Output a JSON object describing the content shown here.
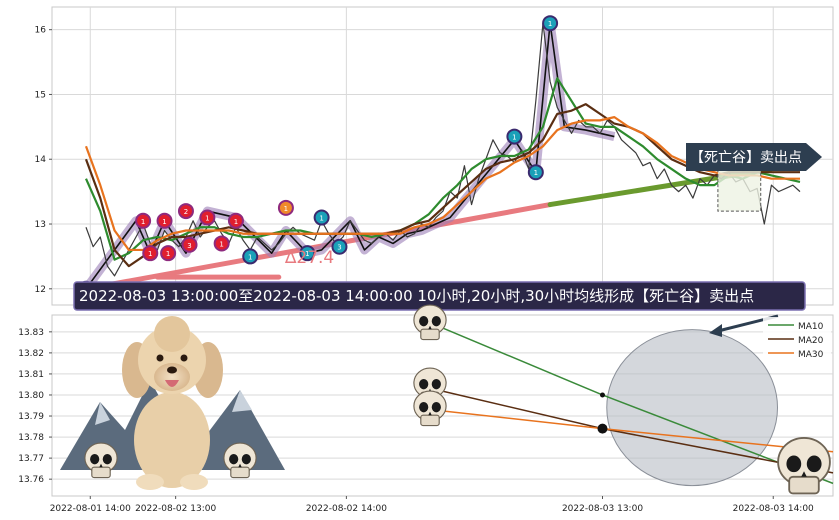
{
  "chart_data": [
    {
      "type": "line",
      "panel": "price",
      "y_ticks": [
        12,
        13,
        14,
        15,
        16
      ],
      "ylim": [
        11.75,
        16.35
      ],
      "x_index_range": [
        0,
        100
      ],
      "colors": {
        "price": "#3b3b3b",
        "ma10": "#2e8b2e",
        "ma20": "#5a2e12",
        "ma30": "#e8731e",
        "trend_red": "#e87a7f",
        "trend_green": "#6a9a2e"
      },
      "series": [
        {
          "key": "price",
          "x": [
            0,
            1,
            2,
            3,
            4,
            5,
            6,
            7,
            8,
            9,
            10,
            11,
            12,
            13,
            14,
            15,
            16,
            17,
            18,
            19,
            20,
            21,
            22,
            23,
            24,
            25,
            26,
            27,
            28,
            29,
            30,
            31,
            32,
            33,
            34,
            35,
            36,
            37,
            38,
            39,
            40,
            41,
            42,
            43,
            44,
            45,
            46,
            47,
            48,
            49,
            50,
            51,
            52,
            53,
            54,
            55,
            56,
            57,
            58,
            59,
            60,
            61,
            62,
            63,
            64,
            65,
            66,
            67,
            68,
            69,
            70,
            71,
            72,
            73,
            74,
            75,
            76,
            77,
            78,
            79,
            80,
            81,
            82,
            83,
            84,
            85,
            86,
            87,
            88,
            89,
            90,
            91,
            92,
            93,
            94,
            95,
            96,
            97,
            98,
            99,
            100
          ],
          "y": [
            12.95,
            12.65,
            12.8,
            12.35,
            12.2,
            12.4,
            12.6,
            12.8,
            13.0,
            12.7,
            12.6,
            12.9,
            12.75,
            12.65,
            12.8,
            13.05,
            12.8,
            12.95,
            13.05,
            12.85,
            12.7,
            12.95,
            12.75,
            12.6,
            12.8,
            12.7,
            12.6,
            12.7,
            12.85,
            12.95,
            12.85,
            12.8,
            12.75,
            13.05,
            12.85,
            12.7,
            12.8,
            13.05,
            12.9,
            12.75,
            12.7,
            12.8,
            12.85,
            12.75,
            12.9,
            12.8,
            12.85,
            13.0,
            12.95,
            13.1,
            13.2,
            13.5,
            13.4,
            13.9,
            13.3,
            13.7,
            14.0,
            14.3,
            14.1,
            14.05,
            13.95,
            14.15,
            13.85,
            14.9,
            16.1,
            15.2,
            14.8,
            14.6,
            14.4,
            14.6,
            14.5,
            14.5,
            14.4,
            14.6,
            14.5,
            14.3,
            14.2,
            14.1,
            13.9,
            13.95,
            13.7,
            13.85,
            13.6,
            13.5,
            13.6,
            13.4,
            13.7,
            13.6,
            13.75,
            13.7,
            13.8,
            13.65,
            13.7,
            13.5,
            13.55,
            13.0,
            13.6,
            13.5,
            13.55,
            13.6,
            13.5
          ]
        },
        {
          "key": "ma10",
          "x": [
            0,
            2,
            4,
            6,
            8,
            10,
            12,
            14,
            16,
            18,
            20,
            22,
            24,
            26,
            28,
            30,
            32,
            34,
            36,
            38,
            40,
            42,
            44,
            46,
            48,
            50,
            52,
            54,
            56,
            58,
            60,
            62,
            64,
            66,
            68,
            70,
            72,
            74,
            76,
            78,
            80,
            82,
            84,
            86,
            88,
            90,
            92,
            94,
            96,
            98,
            100
          ],
          "y": [
            13.7,
            13.2,
            12.45,
            12.55,
            12.75,
            12.8,
            12.75,
            12.85,
            12.95,
            12.95,
            12.85,
            12.8,
            12.8,
            12.85,
            12.9,
            12.9,
            12.85,
            12.85,
            12.85,
            12.85,
            12.8,
            12.85,
            12.9,
            13.0,
            13.15,
            13.4,
            13.6,
            13.85,
            14.0,
            14.05,
            14.05,
            14.15,
            14.5,
            15.25,
            14.9,
            14.55,
            14.5,
            14.5,
            14.35,
            14.2,
            14.0,
            13.85,
            13.7,
            13.6,
            13.6,
            13.75,
            13.7,
            13.8,
            13.75,
            13.7,
            13.65
          ]
        },
        {
          "key": "ma20",
          "x": [
            0,
            2,
            4,
            6,
            8,
            10,
            12,
            14,
            16,
            18,
            20,
            22,
            24,
            26,
            28,
            30,
            32,
            34,
            36,
            38,
            40,
            42,
            44,
            46,
            48,
            50,
            52,
            54,
            56,
            58,
            60,
            62,
            64,
            66,
            68,
            70,
            72,
            74,
            76,
            78,
            80,
            82,
            84,
            86,
            88,
            90,
            92,
            94,
            96,
            98,
            100
          ],
          "y": [
            14.0,
            13.4,
            12.6,
            12.35,
            12.5,
            12.7,
            12.8,
            12.8,
            12.85,
            12.9,
            12.95,
            12.9,
            12.85,
            12.85,
            12.85,
            12.85,
            12.85,
            12.85,
            12.85,
            12.85,
            12.85,
            12.85,
            12.9,
            13.0,
            13.05,
            13.25,
            13.45,
            13.65,
            13.85,
            13.95,
            14.0,
            14.1,
            14.3,
            14.7,
            14.75,
            14.85,
            14.7,
            14.55,
            14.5,
            14.4,
            14.2,
            14.0,
            13.9,
            13.8,
            13.75,
            13.8,
            13.8,
            13.8,
            13.8,
            13.8,
            13.8
          ]
        },
        {
          "key": "ma30",
          "x": [
            0,
            2,
            4,
            6,
            8,
            10,
            12,
            14,
            16,
            18,
            20,
            22,
            24,
            26,
            28,
            30,
            32,
            34,
            36,
            38,
            40,
            42,
            44,
            46,
            48,
            50,
            52,
            54,
            56,
            58,
            60,
            62,
            64,
            66,
            68,
            70,
            72,
            74,
            76,
            78,
            80,
            82,
            84,
            86,
            88,
            90,
            92,
            94,
            96,
            98,
            100
          ],
          "y": [
            14.2,
            13.6,
            12.9,
            12.6,
            12.6,
            12.75,
            12.85,
            12.9,
            12.9,
            12.9,
            12.9,
            12.85,
            12.85,
            12.85,
            12.85,
            12.85,
            12.85,
            12.85,
            12.85,
            12.85,
            12.85,
            12.85,
            12.85,
            12.95,
            13.0,
            13.1,
            13.3,
            13.5,
            13.7,
            13.8,
            13.95,
            14.05,
            14.2,
            14.45,
            14.55,
            14.6,
            14.6,
            14.65,
            14.5,
            14.4,
            14.25,
            14.05,
            13.95,
            13.85,
            13.8,
            13.75,
            13.75,
            13.75,
            13.7,
            13.7,
            13.7
          ]
        }
      ],
      "pattern_polyline": {
        "x": [
          0,
          7,
          9,
          11,
          14,
          17,
          21,
          26,
          28,
          31,
          33,
          37,
          39,
          41,
          43,
          45,
          47,
          49,
          51,
          60,
          63,
          65,
          67,
          70,
          72,
          74
        ],
        "y": [
          12.0,
          13.05,
          12.55,
          13.05,
          12.55,
          13.2,
          13.1,
          12.55,
          12.9,
          12.55,
          12.6,
          13.05,
          12.6,
          12.8,
          12.7,
          12.85,
          12.9,
          13.0,
          13.1,
          14.3,
          13.8,
          16.1,
          14.5,
          14.45,
          14.4,
          14.35
        ]
      },
      "markers": [
        {
          "x": 0,
          "y": 12.0,
          "label": "1",
          "kind": "buy"
        },
        {
          "x": 8,
          "y": 13.05,
          "label": "1",
          "kind": "sell"
        },
        {
          "x": 9,
          "y": 12.55,
          "label": "1",
          "kind": "sell"
        },
        {
          "x": 11,
          "y": 13.05,
          "label": "1",
          "kind": "sell"
        },
        {
          "x": 11.5,
          "y": 12.55,
          "label": "1",
          "kind": "sell"
        },
        {
          "x": 14,
          "y": 13.2,
          "label": "2",
          "kind": "sell"
        },
        {
          "x": 14.5,
          "y": 12.68,
          "label": "3",
          "kind": "sell"
        },
        {
          "x": 17,
          "y": 13.1,
          "label": "1",
          "kind": "sell"
        },
        {
          "x": 19,
          "y": 12.7,
          "label": "1",
          "kind": "sell"
        },
        {
          "x": 21,
          "y": 13.05,
          "label": "1",
          "kind": "sell"
        },
        {
          "x": 23,
          "y": 12.5,
          "label": "1",
          "kind": "buy"
        },
        {
          "x": 28,
          "y": 13.25,
          "label": "1",
          "kind": "gold"
        },
        {
          "x": 31,
          "y": 12.55,
          "label": "1",
          "kind": "buy"
        },
        {
          "x": 33,
          "y": 13.1,
          "label": "1",
          "kind": "buy"
        },
        {
          "x": 35.5,
          "y": 12.65,
          "label": "3",
          "kind": "buy"
        },
        {
          "x": 60,
          "y": 14.35,
          "label": "1",
          "kind": "buy"
        },
        {
          "x": 63,
          "y": 13.8,
          "label": "1",
          "kind": "buy"
        },
        {
          "x": 65,
          "y": 16.1,
          "label": "1",
          "kind": "buy"
        }
      ],
      "trend_red": {
        "x": [
          0,
          65
        ],
        "y": [
          12.0,
          13.3
        ]
      },
      "trend_green": {
        "x": [
          65,
          96
        ],
        "y": [
          13.3,
          13.85
        ]
      },
      "hbar": {
        "x": [
          10,
          27
        ],
        "y": 12.18
      },
      "angle_label": "∆27.4",
      "signal_box": {
        "x": [
          88.5,
          94.5
        ],
        "y": [
          13.2,
          13.9
        ]
      },
      "signal_arrow_label": "【死亡谷】卖出点",
      "banner": "2022-08-03 13:00:00至2022-08-03 14:00:00 10小时,20小时,30小时均线形成【死亡谷】卖出点"
    },
    {
      "type": "line",
      "panel": "ma-zoom",
      "y_ticks": [
        13.76,
        13.77,
        13.78,
        13.79,
        13.8,
        13.81,
        13.82,
        13.83
      ],
      "ylim": [
        13.752,
        13.838
      ],
      "x_ticks": [
        "2022-08-01 14:00",
        "2022-08-02 13:00",
        "2022-08-02 14:00",
        "2022-08-03 13:00",
        "2022-08-03 14:00"
      ],
      "x_tick_positions": [
        0,
        1,
        3,
        6,
        8
      ],
      "xlim": [
        -0.05,
        8.7
      ],
      "legend": [
        "MA10",
        "MA20",
        "MA30"
      ],
      "legend_position": "top-right",
      "series": [
        {
          "name": "MA10",
          "color": "#3a8a3a",
          "x": [
            4,
            6,
            8.7
          ],
          "y": [
            13.834,
            13.8,
            13.758
          ]
        },
        {
          "name": "MA20",
          "color": "#5a2e12",
          "x": [
            4,
            6,
            8.7
          ],
          "y": [
            13.803,
            13.784,
            13.763
          ]
        },
        {
          "name": "MA30",
          "color": "#e8731e",
          "x": [
            4,
            6,
            8.7
          ],
          "y": [
            13.793,
            13.784,
            13.773
          ]
        }
      ],
      "cross_points": [
        {
          "x": 6,
          "y": 13.8,
          "size": "small"
        },
        {
          "x": 6,
          "y": 13.784,
          "size": "large"
        }
      ],
      "highlight_circle": {
        "cx": 7.05,
        "cy": 13.794,
        "rx": 1.0,
        "ry": 13.796
      }
    }
  ]
}
